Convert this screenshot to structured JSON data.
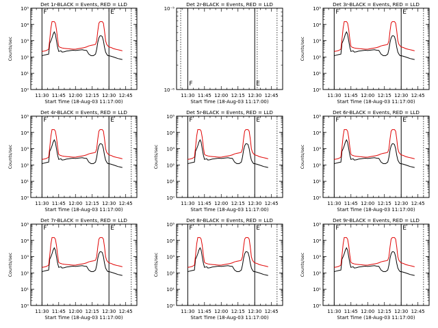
{
  "figure": {
    "background": "#ffffff",
    "events_color": "#000000",
    "lld_color": "#e00000"
  },
  "chart_data": [
    {
      "type": "line",
      "title": "Det 1r-BLACK = Events, RED = LLD",
      "xlabel": "Start Time (18-Aug-03 11:17:00)",
      "ylabel": "Counts/sec",
      "yscale": "log",
      "ylim": [
        1,
        100000
      ],
      "yticks": [
        "10⁰",
        "10¹",
        "10²",
        "10³",
        "10⁴",
        "10⁵"
      ],
      "xticks": [
        "11:30",
        "11:45",
        "12:00",
        "12:15",
        "12:30",
        "12:45"
      ],
      "markers": [
        {
          "label": "F",
          "time": "11:30"
        },
        {
          "label": "E",
          "time": "12:30"
        }
      ],
      "series": [
        {
          "name": "Events",
          "kind": "events"
        },
        {
          "name": "LLD",
          "kind": "lld"
        }
      ],
      "show_ylabel": true
    },
    {
      "type": "line",
      "title": "Det 2r-BLACK = Events, RED = LLD",
      "xlabel": "Start Time (18-Aug-03 11:17:00)",
      "ylabel": "",
      "yscale": "log",
      "ylim": [
        1e-06,
        1e-05
      ],
      "yticks": [
        "10⁻⁶",
        "10⁻⁵"
      ],
      "xticks": [
        "11:30",
        "11:45",
        "12:00",
        "12:15",
        "12:30",
        "12:45"
      ],
      "markers": [
        {
          "label": "F",
          "time": "11:30"
        },
        {
          "label": "E",
          "time": "12:30"
        }
      ],
      "series": [],
      "show_ylabel": false
    },
    {
      "type": "line",
      "title": "Det 3r-BLACK = Events, RED = LLD",
      "xlabel": "Start Time (18-Aug-03 11:17:00)",
      "ylabel": "Counts/sec",
      "yscale": "log",
      "ylim": [
        1,
        100000
      ],
      "yticks": [
        "10⁰",
        "10¹",
        "10²",
        "10³",
        "10⁴",
        "10⁵"
      ],
      "xticks": [
        "11:30",
        "11:45",
        "12:00",
        "12:15",
        "12:30",
        "12:45"
      ],
      "markers": [
        {
          "label": "F",
          "time": "11:30"
        },
        {
          "label": "E",
          "time": "12:30"
        }
      ],
      "series": [
        {
          "name": "Events",
          "kind": "events"
        },
        {
          "name": "LLD",
          "kind": "lld"
        }
      ],
      "show_ylabel": true
    },
    {
      "type": "line",
      "title": "Det 4r-BLACK = Events, RED = LLD",
      "xlabel": "Start Time (18-Aug-03 11:17:00)",
      "ylabel": "Counts/sec",
      "yscale": "log",
      "ylim": [
        1,
        100000
      ],
      "yticks": [
        "10⁰",
        "10¹",
        "10²",
        "10³",
        "10⁴",
        "10⁵"
      ],
      "xticks": [
        "11:30",
        "11:45",
        "12:00",
        "12:15",
        "12:30",
        "12:45"
      ],
      "markers": [
        {
          "label": "F",
          "time": "11:30"
        },
        {
          "label": "E",
          "time": "12:30"
        }
      ],
      "series": [
        {
          "name": "Events",
          "kind": "events"
        },
        {
          "name": "LLD",
          "kind": "lld"
        }
      ],
      "show_ylabel": true
    },
    {
      "type": "line",
      "title": "Det 5r-BLACK = Events, RED = LLD",
      "xlabel": "Start Time (18-Aug-03 11:17:00)",
      "ylabel": "Counts/sec",
      "yscale": "log",
      "ylim": [
        1,
        100000
      ],
      "yticks": [
        "10⁰",
        "10¹",
        "10²",
        "10³",
        "10⁴",
        "10⁵"
      ],
      "xticks": [
        "11:30",
        "11:45",
        "12:00",
        "12:15",
        "12:30",
        "12:45"
      ],
      "markers": [
        {
          "label": "F",
          "time": "11:30"
        },
        {
          "label": "E",
          "time": "12:30"
        }
      ],
      "series": [
        {
          "name": "Events",
          "kind": "events"
        },
        {
          "name": "LLD",
          "kind": "lld"
        }
      ],
      "show_ylabel": true
    },
    {
      "type": "line",
      "title": "Det 6r-BLACK = Events, RED = LLD",
      "xlabel": "Start Time (18-Aug-03 11:17:00)",
      "ylabel": "Counts/sec",
      "yscale": "log",
      "ylim": [
        1,
        100000
      ],
      "yticks": [
        "10⁰",
        "10¹",
        "10²",
        "10³",
        "10⁴",
        "10⁵"
      ],
      "xticks": [
        "11:30",
        "11:45",
        "12:00",
        "12:15",
        "12:30",
        "12:45"
      ],
      "markers": [
        {
          "label": "F",
          "time": "11:30"
        },
        {
          "label": "E",
          "time": "12:30"
        }
      ],
      "series": [
        {
          "name": "Events",
          "kind": "events"
        },
        {
          "name": "LLD",
          "kind": "lld"
        }
      ],
      "show_ylabel": true
    },
    {
      "type": "line",
      "title": "Det 7r-BLACK = Events, RED = LLD",
      "xlabel": "Start Time (18-Aug-03 11:17:00)",
      "ylabel": "Counts/sec",
      "yscale": "log",
      "ylim": [
        1,
        100000
      ],
      "yticks": [
        "10⁰",
        "10¹",
        "10²",
        "10³",
        "10⁴",
        "10⁵"
      ],
      "xticks": [
        "11:30",
        "11:45",
        "12:00",
        "12:15",
        "12:30",
        "12:45"
      ],
      "markers": [
        {
          "label": "F",
          "time": "11:30"
        },
        {
          "label": "E",
          "time": "12:30"
        }
      ],
      "series": [
        {
          "name": "Events",
          "kind": "events"
        },
        {
          "name": "LLD",
          "kind": "lld"
        }
      ],
      "show_ylabel": true
    },
    {
      "type": "line",
      "title": "Det 8r-BLACK = Events, RED = LLD",
      "xlabel": "Start Time (18-Aug-03 11:17:00)",
      "ylabel": "Counts/sec",
      "yscale": "log",
      "ylim": [
        1,
        100000
      ],
      "yticks": [
        "10⁰",
        "10¹",
        "10²",
        "10³",
        "10⁴",
        "10⁵"
      ],
      "xticks": [
        "11:30",
        "11:45",
        "12:00",
        "12:15",
        "12:30",
        "12:45"
      ],
      "markers": [
        {
          "label": "F",
          "time": "11:30"
        },
        {
          "label": "E",
          "time": "12:30"
        }
      ],
      "series": [
        {
          "name": "Events",
          "kind": "events"
        },
        {
          "name": "LLD",
          "kind": "lld"
        }
      ],
      "show_ylabel": true
    },
    {
      "type": "line",
      "title": "Det 9r-BLACK = Events, RED = LLD",
      "xlabel": "Start Time (18-Aug-03 11:17:00)",
      "ylabel": "Counts/sec",
      "yscale": "log",
      "ylim": [
        1,
        100000
      ],
      "yticks": [
        "10⁰",
        "10¹",
        "10²",
        "10³",
        "10⁴",
        "10⁵"
      ],
      "xticks": [
        "11:30",
        "11:45",
        "12:00",
        "12:15",
        "12:30",
        "12:45"
      ],
      "markers": [
        {
          "label": "F",
          "time": "11:30"
        },
        {
          "label": "E",
          "time": "12:30"
        }
      ],
      "series": [
        {
          "name": "Events",
          "kind": "events"
        },
        {
          "name": "LLD",
          "kind": "lld"
        }
      ],
      "show_ylabel": true
    }
  ],
  "profiles": {
    "minutes": [
      0,
      2,
      4,
      6,
      7,
      8,
      9,
      10,
      11,
      12,
      13,
      14,
      15,
      16,
      17,
      18,
      20,
      22,
      24,
      26,
      28,
      30,
      32,
      34,
      36,
      38,
      40,
      42,
      44,
      46,
      48,
      49,
      50,
      51,
      52,
      53,
      54,
      55,
      56,
      57,
      58,
      59,
      60,
      62,
      64,
      66,
      68,
      70,
      72
    ],
    "events": [
      120,
      130,
      140,
      150,
      700,
      1000,
      1500,
      2500,
      3500,
      2500,
      1000,
      400,
      220,
      230,
      240,
      200,
      210,
      230,
      240,
      250,
      260,
      250,
      260,
      270,
      280,
      260,
      250,
      150,
      120,
      120,
      150,
      300,
      800,
      1500,
      2000,
      2000,
      1800,
      1000,
      400,
      200,
      150,
      120,
      120,
      110,
      100,
      90,
      80,
      75,
      70
    ],
    "lld": [
      220,
      230,
      250,
      300,
      1200,
      6000,
      15000,
      15000,
      15000,
      12000,
      5000,
      1200,
      450,
      400,
      380,
      360,
      340,
      330,
      320,
      310,
      300,
      300,
      320,
      340,
      360,
      380,
      420,
      480,
      520,
      550,
      600,
      1000,
      4000,
      12000,
      15000,
      15000,
      15000,
      12000,
      4000,
      1000,
      600,
      480,
      420,
      380,
      330,
      300,
      280,
      260,
      240
    ]
  }
}
